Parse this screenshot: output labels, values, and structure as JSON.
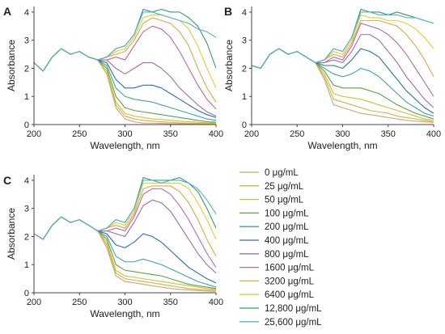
{
  "chart_data": {
    "type": "line",
    "x_ticks": [
      200,
      250,
      300,
      350,
      400
    ],
    "y_ticks": [
      0,
      1,
      2,
      3,
      4
    ],
    "xlim": [
      200,
      400
    ],
    "ylim": [
      0,
      4.2
    ],
    "xlabel": "Wavelength, nm",
    "ylabel": "Absorbance",
    "grid": false,
    "legend_position": "bottom-right",
    "x": [
      200,
      210,
      220,
      230,
      240,
      250,
      260,
      270,
      280,
      290,
      300,
      310,
      320,
      330,
      340,
      350,
      360,
      370,
      380,
      390,
      400
    ],
    "series": [
      {
        "name": "0 μg/mL",
        "color": "#c9a77a"
      },
      {
        "name": "25 μg/mL",
        "color": "#d4b04a"
      },
      {
        "name": "50 μg/mL",
        "color": "#c9c23c"
      },
      {
        "name": "100 μg/mL",
        "color": "#5fa052"
      },
      {
        "name": "200 μg/mL",
        "color": "#4aa0a0"
      },
      {
        "name": "400 μg/mL",
        "color": "#2e6fa8"
      },
      {
        "name": "800 μg/mL",
        "color": "#9c6fa8"
      },
      {
        "name": "1600 μg/mL",
        "color": "#c06a9a"
      },
      {
        "name": "3200 μg/mL",
        "color": "#e0a84e"
      },
      {
        "name": "6400 μg/mL",
        "color": "#d8d040"
      },
      {
        "name": "12,800 μg/mL",
        "color": "#3a9a6a"
      },
      {
        "name": "25,600 μg/mL",
        "color": "#5ab0c8"
      }
    ],
    "panels": [
      {
        "label": "A",
        "values": [
          [
            2.2,
            1.9,
            2.4,
            2.7,
            2.5,
            2.6,
            2.4,
            2.3,
            1.8,
            0.6,
            0.2,
            0.1,
            0.05,
            0.05,
            0.04,
            0.03,
            0.03,
            0.02,
            0.02,
            0.02,
            0.02
          ],
          [
            2.2,
            1.9,
            2.4,
            2.7,
            2.5,
            2.6,
            2.4,
            2.3,
            1.8,
            0.7,
            0.3,
            0.2,
            0.15,
            0.12,
            0.1,
            0.08,
            0.06,
            0.05,
            0.04,
            0.03,
            0.03
          ],
          [
            2.2,
            1.9,
            2.4,
            2.7,
            2.5,
            2.6,
            2.4,
            2.3,
            1.9,
            0.8,
            0.4,
            0.3,
            0.25,
            0.2,
            0.18,
            0.15,
            0.12,
            0.1,
            0.08,
            0.06,
            0.05
          ],
          [
            2.2,
            1.9,
            2.4,
            2.7,
            2.5,
            2.6,
            2.4,
            2.3,
            2.0,
            1.0,
            0.6,
            0.5,
            0.45,
            0.4,
            0.35,
            0.3,
            0.25,
            0.2,
            0.15,
            0.1,
            0.08
          ],
          [
            2.2,
            1.9,
            2.4,
            2.7,
            2.5,
            2.6,
            2.4,
            2.3,
            2.1,
            1.3,
            1.0,
            0.9,
            0.85,
            0.8,
            0.7,
            0.6,
            0.5,
            0.4,
            0.3,
            0.2,
            0.15
          ],
          [
            2.2,
            1.9,
            2.4,
            2.7,
            2.5,
            2.6,
            2.4,
            2.3,
            2.2,
            1.6,
            1.3,
            1.3,
            1.4,
            1.4,
            1.3,
            1.1,
            0.9,
            0.7,
            0.5,
            0.35,
            0.25
          ],
          [
            2.2,
            1.9,
            2.4,
            2.7,
            2.5,
            2.6,
            2.4,
            2.3,
            2.3,
            2.0,
            1.8,
            2.0,
            2.2,
            2.2,
            2.0,
            1.7,
            1.3,
            1.0,
            0.7,
            0.45,
            0.3
          ],
          [
            2.2,
            1.9,
            2.4,
            2.7,
            2.5,
            2.6,
            2.4,
            2.3,
            2.3,
            2.4,
            2.3,
            2.8,
            3.3,
            3.5,
            3.4,
            3.1,
            2.6,
            2.0,
            1.4,
            0.9,
            0.55
          ],
          [
            2.2,
            1.9,
            2.4,
            2.7,
            2.5,
            2.6,
            2.4,
            2.3,
            2.4,
            2.5,
            2.6,
            3.0,
            3.6,
            3.8,
            3.7,
            3.6,
            3.3,
            2.8,
            2.0,
            1.3,
            0.8
          ],
          [
            2.2,
            1.9,
            2.4,
            2.7,
            2.5,
            2.6,
            2.4,
            2.3,
            2.4,
            2.6,
            2.7,
            3.1,
            3.8,
            3.9,
            3.9,
            3.8,
            3.7,
            3.4,
            2.8,
            2.0,
            1.3
          ],
          [
            2.2,
            1.9,
            2.4,
            2.7,
            2.5,
            2.6,
            2.4,
            2.3,
            2.4,
            2.7,
            2.8,
            3.2,
            4.1,
            4.0,
            4.1,
            4.0,
            4.0,
            3.8,
            3.5,
            2.9,
            2.0
          ],
          [
            2.2,
            1.9,
            2.4,
            2.7,
            2.5,
            2.6,
            2.4,
            2.3,
            2.4,
            2.7,
            2.8,
            3.2,
            4.0,
            4.0,
            3.9,
            3.8,
            3.7,
            3.6,
            3.4,
            3.3,
            3.1
          ]
        ]
      },
      {
        "label": "B",
        "values": [
          [
            2.1,
            2.0,
            2.5,
            2.7,
            2.5,
            2.6,
            2.4,
            2.2,
            1.6,
            0.7,
            0.6,
            0.5,
            0.4,
            0.35,
            0.3,
            0.25,
            0.2,
            0.15,
            0.12,
            0.1,
            0.08
          ],
          [
            2.1,
            2.0,
            2.5,
            2.7,
            2.5,
            2.6,
            2.4,
            2.2,
            1.7,
            0.9,
            0.8,
            0.7,
            0.6,
            0.5,
            0.45,
            0.4,
            0.3,
            0.25,
            0.2,
            0.15,
            0.1
          ],
          [
            2.1,
            2.0,
            2.5,
            2.7,
            2.5,
            2.6,
            2.4,
            2.2,
            1.8,
            1.1,
            1.0,
            0.95,
            0.9,
            0.8,
            0.7,
            0.6,
            0.5,
            0.4,
            0.3,
            0.2,
            0.15
          ],
          [
            2.1,
            2.0,
            2.5,
            2.7,
            2.5,
            2.6,
            2.4,
            2.2,
            1.9,
            1.4,
            1.3,
            1.3,
            1.3,
            1.2,
            1.1,
            0.9,
            0.7,
            0.55,
            0.4,
            0.3,
            0.2
          ],
          [
            2.1,
            2.0,
            2.5,
            2.7,
            2.5,
            2.6,
            2.4,
            2.2,
            2.0,
            1.8,
            1.7,
            1.8,
            2.0,
            1.9,
            1.7,
            1.4,
            1.1,
            0.8,
            0.6,
            0.4,
            0.3
          ],
          [
            2.1,
            2.0,
            2.5,
            2.7,
            2.5,
            2.6,
            2.4,
            2.2,
            2.1,
            2.1,
            2.0,
            2.3,
            2.7,
            2.6,
            2.4,
            2.0,
            1.6,
            1.2,
            0.9,
            0.6,
            0.4
          ],
          [
            2.1,
            2.0,
            2.5,
            2.7,
            2.5,
            2.6,
            2.4,
            2.2,
            2.2,
            2.3,
            2.2,
            2.6,
            3.2,
            3.2,
            3.0,
            2.6,
            2.2,
            1.7,
            1.3,
            0.9,
            0.6
          ],
          [
            2.1,
            2.0,
            2.5,
            2.7,
            2.5,
            2.6,
            2.4,
            2.2,
            2.2,
            2.4,
            2.3,
            2.8,
            3.6,
            3.5,
            3.4,
            3.2,
            2.9,
            2.5,
            2.0,
            1.5,
            1.0
          ],
          [
            2.1,
            2.0,
            2.5,
            2.7,
            2.5,
            2.6,
            2.4,
            2.2,
            2.3,
            2.5,
            2.4,
            2.9,
            3.7,
            3.7,
            3.7,
            3.6,
            3.5,
            3.2,
            2.8,
            2.3,
            1.7
          ],
          [
            2.1,
            2.0,
            2.5,
            2.7,
            2.5,
            2.6,
            2.4,
            2.2,
            2.3,
            2.6,
            2.5,
            3.0,
            3.9,
            3.8,
            3.8,
            3.7,
            3.7,
            3.6,
            3.4,
            3.1,
            2.7
          ],
          [
            2.1,
            2.0,
            2.5,
            2.7,
            2.5,
            2.6,
            2.4,
            2.2,
            2.3,
            2.7,
            2.6,
            3.1,
            4.1,
            4.0,
            4.0,
            3.9,
            4.0,
            3.9,
            3.8,
            3.7,
            3.6
          ],
          [
            2.1,
            2.0,
            2.5,
            2.7,
            2.5,
            2.6,
            2.4,
            2.2,
            2.3,
            2.7,
            2.6,
            3.1,
            4.0,
            4.0,
            3.9,
            3.9,
            3.9,
            3.8,
            3.8,
            3.7,
            3.6
          ]
        ]
      },
      {
        "label": "C",
        "values": [
          [
            2.1,
            1.9,
            2.4,
            2.7,
            2.5,
            2.6,
            2.4,
            2.2,
            1.6,
            0.6,
            0.4,
            0.35,
            0.3,
            0.25,
            0.2,
            0.15,
            0.12,
            0.1,
            0.08,
            0.06,
            0.05
          ],
          [
            2.1,
            1.9,
            2.4,
            2.7,
            2.5,
            2.6,
            2.4,
            2.2,
            1.7,
            0.7,
            0.5,
            0.45,
            0.4,
            0.35,
            0.3,
            0.25,
            0.2,
            0.15,
            0.12,
            0.1,
            0.08
          ],
          [
            2.1,
            1.9,
            2.4,
            2.7,
            2.5,
            2.6,
            2.4,
            2.2,
            1.8,
            0.8,
            0.6,
            0.55,
            0.5,
            0.45,
            0.4,
            0.35,
            0.3,
            0.25,
            0.2,
            0.15,
            0.12
          ],
          [
            2.1,
            1.9,
            2.4,
            2.7,
            2.5,
            2.6,
            2.4,
            2.2,
            1.9,
            1.0,
            0.8,
            0.75,
            0.7,
            0.65,
            0.6,
            0.5,
            0.4,
            0.3,
            0.25,
            0.2,
            0.15
          ],
          [
            2.1,
            1.9,
            2.4,
            2.7,
            2.5,
            2.6,
            2.4,
            2.2,
            2.0,
            1.3,
            1.1,
            1.1,
            1.2,
            1.1,
            1.0,
            0.85,
            0.7,
            0.55,
            0.4,
            0.3,
            0.2
          ],
          [
            2.1,
            1.9,
            2.4,
            2.7,
            2.5,
            2.6,
            2.4,
            2.2,
            2.1,
            1.7,
            1.6,
            1.8,
            2.1,
            2.0,
            1.8,
            1.5,
            1.2,
            0.9,
            0.7,
            0.5,
            0.35
          ],
          [
            2.1,
            1.9,
            2.4,
            2.7,
            2.5,
            2.6,
            2.4,
            2.2,
            2.2,
            2.1,
            2.0,
            2.5,
            3.1,
            3.3,
            3.2,
            2.9,
            2.4,
            1.9,
            1.4,
            1.0,
            0.7
          ],
          [
            2.1,
            1.9,
            2.4,
            2.7,
            2.5,
            2.6,
            2.4,
            2.2,
            2.2,
            2.3,
            2.2,
            2.7,
            3.5,
            3.7,
            3.7,
            3.5,
            3.1,
            2.6,
            2.0,
            1.4,
            0.9
          ],
          [
            2.1,
            1.9,
            2.4,
            2.7,
            2.5,
            2.6,
            2.4,
            2.2,
            2.3,
            2.4,
            2.3,
            2.8,
            3.7,
            3.8,
            3.8,
            3.8,
            3.6,
            3.2,
            2.6,
            1.9,
            1.3
          ],
          [
            2.1,
            1.9,
            2.4,
            2.7,
            2.5,
            2.6,
            2.4,
            2.2,
            2.3,
            2.5,
            2.4,
            2.9,
            3.9,
            3.9,
            3.9,
            3.9,
            3.9,
            3.7,
            3.2,
            2.6,
            1.9
          ],
          [
            2.1,
            1.9,
            2.4,
            2.7,
            2.5,
            2.6,
            2.4,
            2.2,
            2.3,
            2.6,
            2.5,
            3.0,
            4.1,
            4.0,
            4.0,
            4.0,
            4.1,
            3.9,
            3.6,
            3.0,
            2.3
          ],
          [
            2.1,
            1.9,
            2.4,
            2.7,
            2.5,
            2.6,
            2.4,
            2.2,
            2.3,
            2.6,
            2.5,
            3.0,
            4.0,
            4.0,
            3.9,
            4.0,
            4.0,
            3.9,
            3.7,
            3.3,
            2.8
          ]
        ]
      }
    ]
  }
}
